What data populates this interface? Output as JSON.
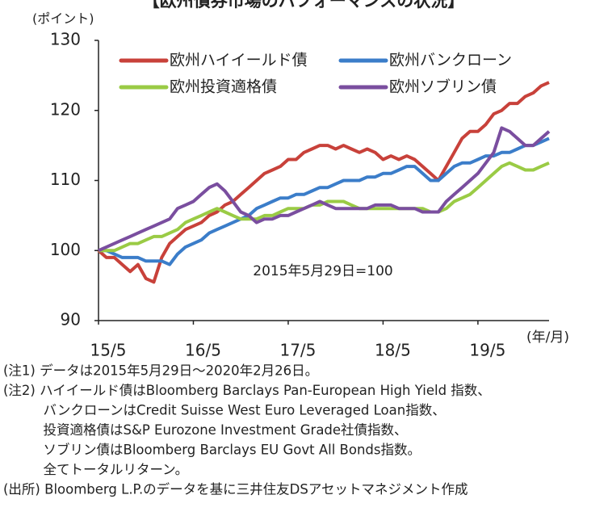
{
  "chart_data": {
    "type": "line",
    "title": "【欧州債券市場のパフォーマンスの状況】",
    "y_unit_label": "(ポイント)",
    "x_unit_label": "(年/月)",
    "annotation": "2015年5月29日=100",
    "categories": [
      "15/5",
      "15/6",
      "15/7",
      "15/8",
      "15/9",
      "15/10",
      "15/11",
      "15/12",
      "16/1",
      "16/2",
      "16/3",
      "16/4",
      "16/5",
      "16/6",
      "16/7",
      "16/8",
      "16/9",
      "16/10",
      "16/11",
      "16/12",
      "17/1",
      "17/2",
      "17/3",
      "17/4",
      "17/5",
      "17/6",
      "17/7",
      "17/8",
      "17/9",
      "17/10",
      "17/11",
      "17/12",
      "18/1",
      "18/2",
      "18/3",
      "18/4",
      "18/5",
      "18/6",
      "18/7",
      "18/8",
      "18/9",
      "18/10",
      "18/11",
      "18/12",
      "19/1",
      "19/2",
      "19/3",
      "19/4",
      "19/5",
      "19/6",
      "19/7",
      "19/8",
      "19/9",
      "19/10",
      "19/11",
      "19/12",
      "20/1",
      "20/2"
    ],
    "xticks": [
      "15/5",
      "16/5",
      "17/5",
      "18/5",
      "19/5"
    ],
    "ylim": [
      90,
      130
    ],
    "yticks": [
      90,
      100,
      110,
      120,
      130
    ],
    "grid": false,
    "series": [
      {
        "name": "欧州ハイイールド債",
        "color": "#c8413a",
        "values": [
          100,
          99,
          99,
          98,
          97,
          98,
          96,
          95.5,
          99,
          101,
          102,
          103,
          103.5,
          104,
          105,
          105.5,
          106.5,
          107,
          108,
          109,
          110,
          111,
          111.5,
          112,
          113,
          113,
          114,
          114.5,
          115,
          115,
          114.5,
          115,
          114.5,
          114,
          114.5,
          114,
          113,
          113.5,
          113,
          113.5,
          113,
          112,
          111,
          110,
          112,
          114,
          116,
          117,
          117,
          118,
          119.5,
          120,
          121,
          121,
          122,
          122.5,
          123.5,
          124
        ]
      },
      {
        "name": "欧州バンクローン",
        "color": "#3b7dc9",
        "values": [
          100,
          100,
          99.5,
          99,
          99,
          99,
          98.5,
          98.5,
          98.5,
          98,
          99.5,
          100.5,
          101,
          101.5,
          102.5,
          103,
          103.5,
          104,
          104.5,
          105,
          106,
          106.5,
          107,
          107.5,
          107.5,
          108,
          108,
          108.5,
          109,
          109,
          109.5,
          110,
          110,
          110,
          110.5,
          110.5,
          111,
          111,
          111.5,
          112,
          112,
          111,
          110,
          110,
          111,
          112,
          112.5,
          112.5,
          113,
          113.5,
          113.5,
          114,
          114,
          114.5,
          115,
          115,
          115.5,
          116
        ]
      },
      {
        "name": "欧州投資適格債",
        "color": "#9acb45",
        "values": [
          100,
          100,
          100,
          100.5,
          101,
          101,
          101.5,
          102,
          102,
          102.5,
          103,
          104,
          104.5,
          105,
          105.5,
          106,
          105.5,
          105,
          104.5,
          104.5,
          104.5,
          105,
          105,
          105.5,
          106,
          106,
          106,
          106.5,
          106.5,
          107,
          107,
          107,
          106.5,
          106,
          106,
          106,
          106,
          106,
          106,
          106,
          106,
          106,
          105.5,
          105.5,
          106,
          107,
          107.5,
          108,
          109,
          110,
          111,
          112,
          112.5,
          112,
          111.5,
          111.5,
          112,
          112.5
        ]
      },
      {
        "name": "欧州ソブリン債",
        "color": "#7a4e9f",
        "values": [
          100,
          100.5,
          101,
          101.5,
          102,
          102.5,
          103,
          103.5,
          104,
          104.5,
          106,
          106.5,
          107,
          108,
          109,
          109.5,
          108.5,
          107,
          105.5,
          105,
          104,
          104.5,
          104.5,
          105,
          105,
          105.5,
          106,
          106.5,
          107,
          106.5,
          106,
          106,
          106,
          106,
          106,
          106.5,
          106.5,
          106.5,
          106,
          106,
          106,
          105.5,
          105.5,
          105.5,
          107,
          108,
          109,
          110,
          111,
          112.5,
          114,
          117.5,
          117,
          116,
          115,
          115,
          116,
          117
        ]
      }
    ],
    "notes": [
      "(注1) データは2015年5月29日～2020年2月26日。",
      "(注2) ハイイールド債はBloomberg Barclays Pan-European High Yield 指数、",
      "　　　バンクローンはCredit Suisse West Euro Leveraged Loan指数、",
      "　　　投資適格債はS&P Eurozone Investment Grade社債指数、",
      "　　　ソブリン債はBloomberg Barclays EU Govt All Bonds指数。",
      "　　　全てトータルリターン。",
      "(出所) Bloomberg L.P.のデータを基に三井住友DSアセットマネジメント作成"
    ]
  }
}
